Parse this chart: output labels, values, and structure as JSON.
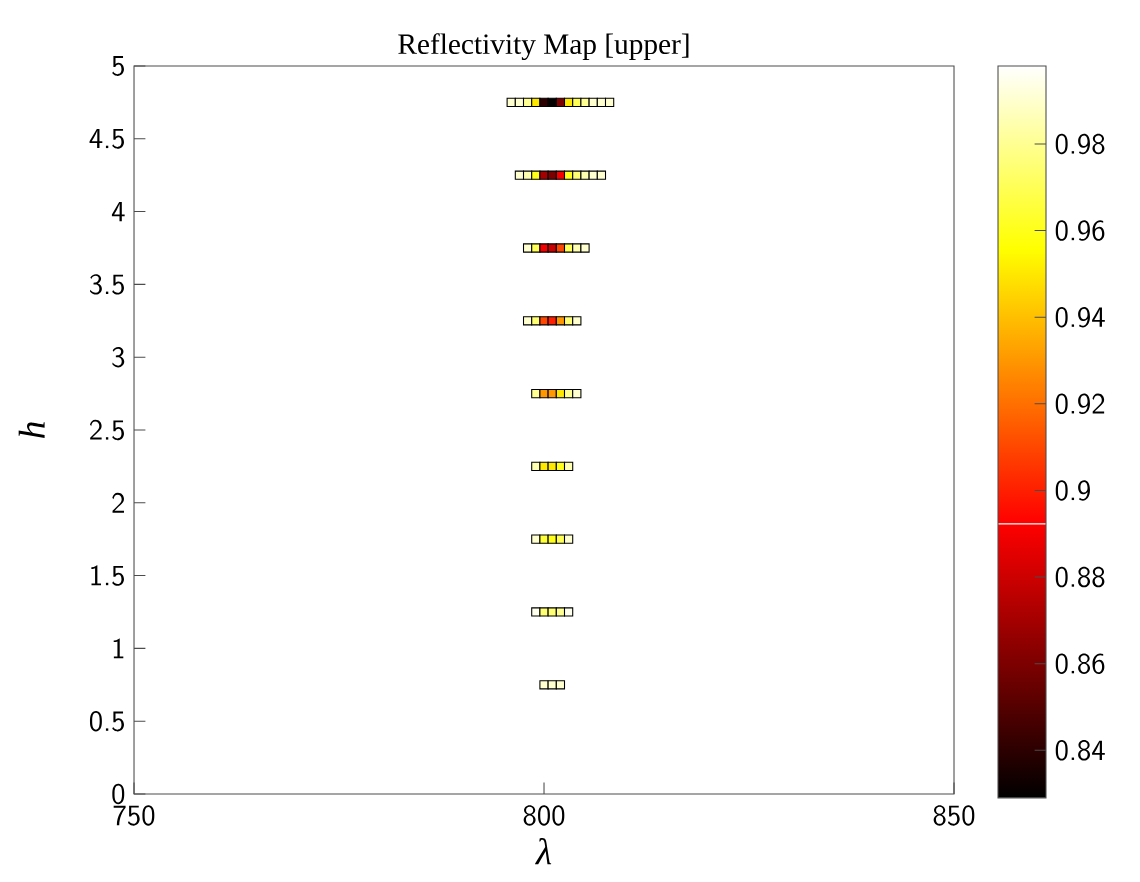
{
  "chart_data": {
    "type": "scatter",
    "title": "Reflectivity Map [upper]",
    "xlabel": "λ",
    "ylabel": "h",
    "marker": "square",
    "x": [
      796,
      797,
      798,
      799,
      800,
      801,
      802,
      803,
      804,
      805,
      806,
      807,
      808,
      797,
      798,
      799,
      800,
      801,
      802,
      803,
      804,
      805,
      806,
      807,
      798,
      799,
      800,
      801,
      802,
      803,
      804,
      805,
      798,
      799,
      800,
      801,
      802,
      803,
      804,
      799,
      800,
      801,
      802,
      803,
      804,
      799,
      800,
      801,
      802,
      803,
      799,
      800,
      801,
      802,
      803,
      799,
      800,
      801,
      802,
      803,
      800,
      801,
      802
    ],
    "values": [
      4.75,
      4.75,
      4.75,
      4.75,
      4.75,
      4.75,
      4.75,
      4.75,
      4.75,
      4.75,
      4.75,
      4.75,
      4.75,
      4.25,
      4.25,
      4.25,
      4.25,
      4.25,
      4.25,
      4.25,
      4.25,
      4.25,
      4.25,
      4.25,
      3.75,
      3.75,
      3.75,
      3.75,
      3.75,
      3.75,
      3.75,
      3.75,
      3.25,
      3.25,
      3.25,
      3.25,
      3.25,
      3.25,
      3.25,
      2.75,
      2.75,
      2.75,
      2.75,
      2.75,
      2.75,
      2.25,
      2.25,
      2.25,
      2.25,
      2.25,
      1.75,
      1.75,
      1.75,
      1.75,
      1.75,
      1.25,
      1.25,
      1.25,
      1.25,
      1.25,
      0.75,
      0.75,
      0.75
    ],
    "cvalues": [
      0.99,
      0.99,
      0.98,
      0.95,
      0.84,
      0.83,
      0.86,
      0.95,
      0.97,
      0.98,
      0.99,
      0.99,
      0.99,
      0.99,
      0.985,
      0.96,
      0.87,
      0.86,
      0.89,
      0.96,
      0.975,
      0.985,
      0.99,
      0.99,
      0.99,
      0.97,
      0.89,
      0.88,
      0.91,
      0.97,
      0.985,
      0.99,
      0.99,
      0.975,
      0.91,
      0.9,
      0.93,
      0.975,
      0.99,
      0.98,
      0.93,
      0.93,
      0.95,
      0.98,
      0.99,
      0.985,
      0.95,
      0.95,
      0.96,
      0.985,
      0.99,
      0.965,
      0.96,
      0.97,
      0.99,
      0.995,
      0.975,
      0.975,
      0.98,
      0.995,
      0.99,
      0.99,
      0.99
    ],
    "xlim": [
      750,
      850
    ],
    "xticks": [
      750,
      800,
      850
    ],
    "ylim": [
      0,
      5
    ],
    "yticks": [
      0,
      0.5,
      1,
      1.5,
      2,
      2.5,
      3,
      3.5,
      4,
      4.5,
      5
    ],
    "clim": [
      0.829,
      0.998
    ],
    "cticks": [
      0.84,
      0.86,
      0.88,
      0.9,
      0.92,
      0.94,
      0.96,
      0.98
    ]
  }
}
